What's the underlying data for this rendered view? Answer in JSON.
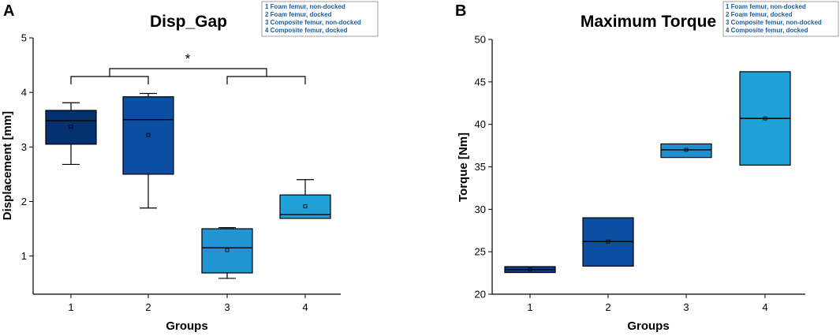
{
  "panels": [
    {
      "letter": "A",
      "legend": [
        "1   Foam femur, non-docked",
        "2   Foam femur, docked",
        "3   Composite femur, non-docked",
        "4   Composite femur, docked"
      ],
      "significance": {
        "label": "*",
        "left_pair": [
          1,
          2
        ],
        "right_pair": [
          3,
          4
        ]
      }
    },
    {
      "letter": "B",
      "legend": [
        "1   Foam femur, non-docked",
        "2   Foam femur, docked",
        "3   Composite femur, non-docked",
        "4   Composite femur, docked"
      ]
    }
  ],
  "chart_data": [
    {
      "type": "box",
      "title": "Disp_Gap",
      "xlabel": "Groups",
      "ylabel": "Displacement [mm]",
      "ylim": [
        0.3,
        5
      ],
      "yticks": [
        1,
        2,
        3,
        4,
        5
      ],
      "categories": [
        "1",
        "2",
        "3",
        "4"
      ],
      "colors": [
        "#043170",
        "#0b4ea2",
        "#1f95d3",
        "#1fa0d6"
      ],
      "boxes": [
        {
          "group": "1",
          "whisker_low": 2.68,
          "q1": 3.05,
          "median": 3.48,
          "q3": 3.67,
          "whisker_high": 3.81,
          "mean": 3.37
        },
        {
          "group": "2",
          "whisker_low": 1.88,
          "q1": 2.5,
          "median": 3.5,
          "q3": 3.92,
          "whisker_high": 3.98,
          "mean": 3.22
        },
        {
          "group": "3",
          "whisker_low": 0.59,
          "q1": 0.69,
          "median": 1.15,
          "q3": 1.5,
          "whisker_high": 1.52,
          "mean": 1.11
        },
        {
          "group": "4",
          "whisker_low": 1.69,
          "q1": 1.69,
          "median": 1.76,
          "q3": 2.12,
          "whisker_high": 2.4,
          "mean": 1.91
        }
      ]
    },
    {
      "type": "box",
      "title": "Maximum Torque",
      "xlabel": "Groups",
      "ylabel": "Torque [Nm]",
      "ylim": [
        20,
        50
      ],
      "yticks": [
        20,
        25,
        30,
        35,
        40,
        45,
        50
      ],
      "categories": [
        "1",
        "2",
        "3",
        "4"
      ],
      "colors": [
        "#0a3d8f",
        "#0b4ea2",
        "#1f8fd0",
        "#1fa0d6"
      ],
      "boxes": [
        {
          "group": "1",
          "whisker_low": 22.55,
          "q1": 22.55,
          "median": 22.9,
          "q3": 23.25,
          "whisker_high": 23.25,
          "mean": 22.9
        },
        {
          "group": "2",
          "whisker_low": 23.3,
          "q1": 23.3,
          "median": 26.2,
          "q3": 29.0,
          "whisker_high": 29.0,
          "mean": 26.2
        },
        {
          "group": "3",
          "whisker_low": 36.1,
          "q1": 36.1,
          "median": 37.0,
          "q3": 37.7,
          "whisker_high": 37.7,
          "mean": 37.0
        },
        {
          "group": "4",
          "whisker_low": 35.2,
          "q1": 35.2,
          "median": 40.7,
          "q3": 46.2,
          "whisker_high": 46.2,
          "mean": 40.7
        }
      ]
    }
  ]
}
